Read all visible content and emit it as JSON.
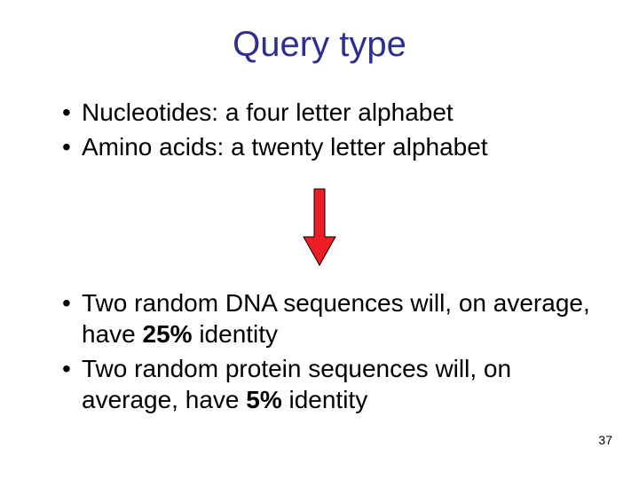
{
  "title": {
    "text": "Query type",
    "color": "#2e2e8f",
    "fontsize": 40
  },
  "top_bullets": {
    "fontsize": 28,
    "color": "#000000",
    "items": [
      "Nucleotides: a four letter alphabet",
      "Amino acids: a twenty letter alphabet"
    ]
  },
  "arrow": {
    "fill": "#ee1c23",
    "stroke": "#000000",
    "width": 40,
    "height": 90
  },
  "bottom_bullets": {
    "fontsize": 28,
    "color": "#000000",
    "items": [
      {
        "pre": "Two random DNA sequences will, on average, have ",
        "bold": "25%",
        "post": " identity"
      },
      {
        "pre": "Two random protein sequences will, on average, have ",
        "bold": "5%",
        "post": " identity"
      }
    ]
  },
  "page_number": {
    "value": "37",
    "fontsize": 14,
    "color": "#000000"
  }
}
